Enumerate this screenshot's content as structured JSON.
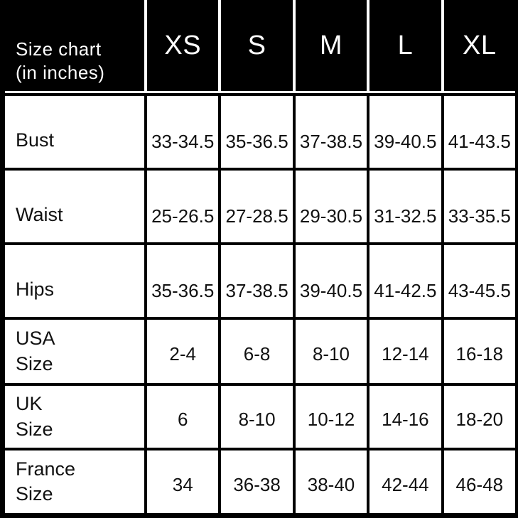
{
  "chart_data": {
    "type": "table",
    "title": "Size chart\n(in inches)",
    "columns": [
      "XS",
      "S",
      "M",
      "L",
      "XL"
    ],
    "rows": [
      {
        "label": "Bust",
        "values": [
          "33-34.5",
          "35-36.5",
          "37-38.5",
          "39-40.5",
          "41-43.5"
        ]
      },
      {
        "label": "Waist",
        "values": [
          "25-26.5",
          "27-28.5",
          "29-30.5",
          "31-32.5",
          "33-35.5"
        ]
      },
      {
        "label": "Hips",
        "values": [
          "35-36.5",
          "37-38.5",
          "39-40.5",
          "41-42.5",
          "43-45.5"
        ]
      },
      {
        "label": "USA\nSize",
        "values": [
          "2-4",
          "6-8",
          "8-10",
          "12-14",
          "16-18"
        ]
      },
      {
        "label": "UK\nSize",
        "values": [
          "6",
          "8-10",
          "10-12",
          "14-16",
          "18-20"
        ]
      },
      {
        "label": "France\nSize",
        "values": [
          "34",
          "36-38",
          "38-40",
          "42-44",
          "46-48"
        ]
      }
    ],
    "colors": {
      "header_bg": "#000000",
      "header_text": "#ffffff",
      "cell_bg": "#ffffff",
      "body_text": "#111111",
      "grid_lines": "#000000"
    }
  }
}
